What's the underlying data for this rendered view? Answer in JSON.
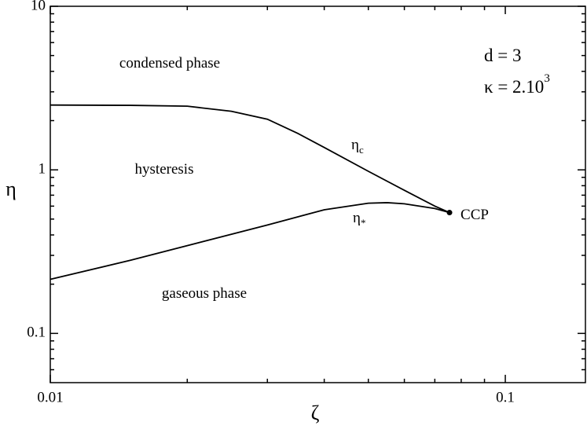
{
  "chart_data": {
    "type": "line",
    "xlabel": "ζ",
    "ylabel": "η",
    "xscale": "log",
    "yscale": "log",
    "xlim": [
      0.01,
      0.15
    ],
    "ylim": [
      0.05,
      10
    ],
    "xticks": [
      0.01,
      0.1
    ],
    "xminorticks": [
      0.02,
      0.03,
      0.04,
      0.05,
      0.06,
      0.07,
      0.08,
      0.09
    ],
    "yticks": [
      0.1,
      1,
      10
    ],
    "yminorticks": [
      0.06,
      0.07,
      0.08,
      0.09,
      0.2,
      0.3,
      0.4,
      0.5,
      0.6,
      0.7,
      0.8,
      0.9,
      2,
      3,
      4,
      5,
      6,
      7,
      8,
      9
    ],
    "series": [
      {
        "name": "η",
        "subscript": "c",
        "color": "#000000",
        "x": [
          0.01,
          0.015,
          0.02,
          0.025,
          0.03,
          0.035,
          0.04,
          0.05,
          0.06,
          0.07,
          0.0754
        ],
        "values": [
          2.49,
          2.48,
          2.45,
          2.28,
          2.04,
          1.67,
          1.37,
          0.98,
          0.75,
          0.6,
          0.548
        ]
      },
      {
        "name": "η",
        "subscript": "*",
        "color": "#000000",
        "x": [
          0.01,
          0.015,
          0.02,
          0.03,
          0.04,
          0.05,
          0.055,
          0.06,
          0.07,
          0.0754
        ],
        "values": [
          0.214,
          0.28,
          0.344,
          0.46,
          0.57,
          0.625,
          0.63,
          0.62,
          0.58,
          0.548
        ]
      }
    ],
    "point": {
      "label": "CCP",
      "x": 0.0754,
      "y": 0.548
    },
    "annotations": [
      {
        "text": "condensed phase"
      },
      {
        "text": "hysteresis"
      },
      {
        "text": "gaseous phase"
      },
      {
        "text": "d = 3"
      },
      {
        "text": "κ = 2.10",
        "superscript": "3"
      }
    ]
  }
}
